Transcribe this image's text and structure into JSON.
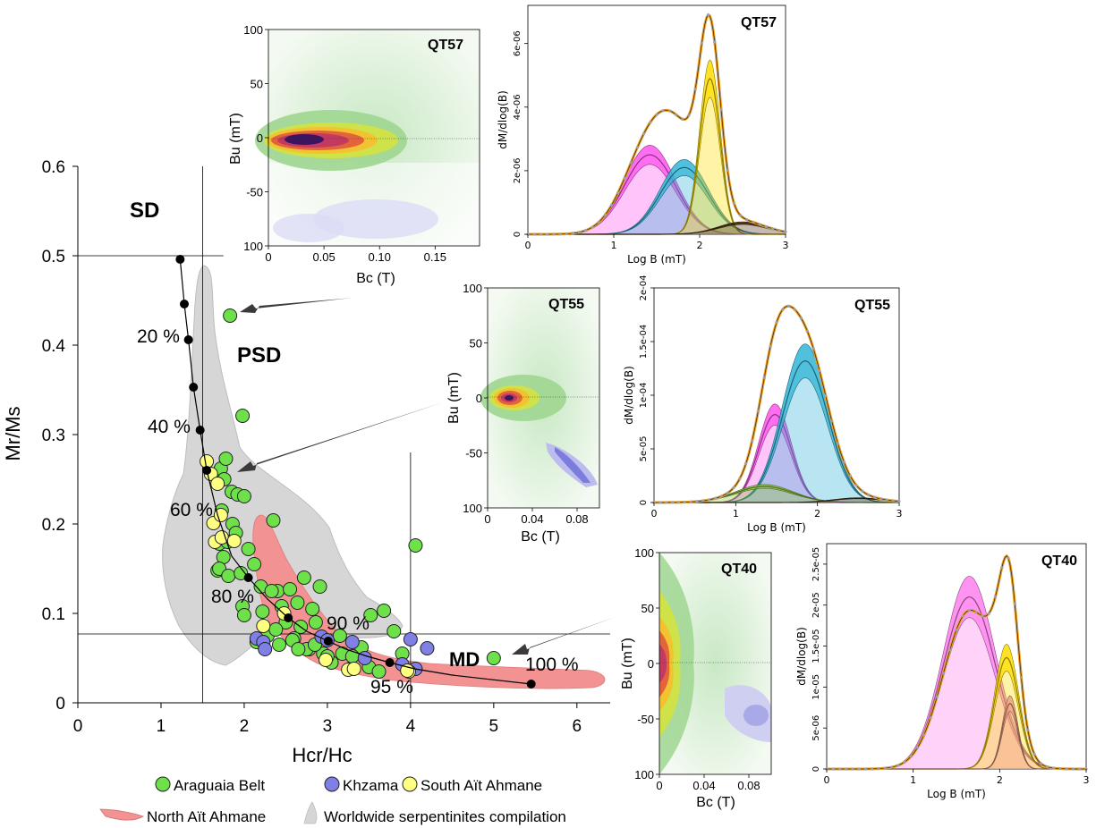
{
  "chart_data": [
    {
      "id": "day-plot",
      "type": "scatter",
      "xlabel": "Hcr/Hc",
      "ylabel": "Mr/Ms",
      "xlim": [
        0,
        6.4
      ],
      "ylim": [
        0,
        0.6
      ],
      "xticks": [
        "0",
        "1",
        "2",
        "3",
        "4",
        "5",
        "6"
      ],
      "yticks": [
        "0",
        "0.1",
        "0.2",
        "0.3",
        "0.4",
        "0.5",
        "0.6"
      ],
      "reference_lines": {
        "x": [
          1.5,
          4.0
        ],
        "y": [
          0.5,
          0.077
        ]
      },
      "region_labels": [
        "SD",
        "PSD",
        "MD"
      ],
      "mixing_curve": {
        "x": [
          1.23,
          1.28,
          1.33,
          1.39,
          1.47,
          1.55,
          1.68,
          1.85,
          2.05,
          2.28,
          2.53,
          2.75,
          3.01,
          3.22,
          3.48,
          3.75,
          4.05,
          4.5,
          5.45
        ],
        "y": [
          0.496,
          0.446,
          0.406,
          0.353,
          0.305,
          0.26,
          0.21,
          0.164,
          0.14,
          0.116,
          0.095,
          0.08,
          0.069,
          0.06,
          0.052,
          0.045,
          0.038,
          0.031,
          0.021
        ],
        "labels": [
          "20 %",
          "40 %",
          "60 %",
          "80 %",
          "90 %",
          "95 %",
          "100 %"
        ]
      },
      "series": [
        {
          "name": "Araguaia Belt",
          "color": "#6de04a",
          "x": [
            1.83,
            1.98,
            1.72,
            1.78,
            1.85,
            1.76,
            1.92,
            2.0,
            1.73,
            1.86,
            1.7,
            1.8,
            1.68,
            1.75,
            1.9,
            2.05,
            1.7,
            1.81,
            1.96,
            2.12,
            2.35,
            1.98,
            2.2,
            2.4,
            2.55,
            2.72,
            2.91,
            2.33,
            2.45,
            2.64,
            2.82,
            2.0,
            2.22,
            2.5,
            2.68,
            2.86,
            2.15,
            2.28,
            2.42,
            2.6,
            2.78,
            2.95,
            3.18,
            3.41,
            3.52,
            3.68,
            3.8,
            3.28,
            2.38,
            2.58,
            2.75,
            3.05,
            3.3,
            3.5,
            3.62,
            3.9,
            4.06,
            5.0,
            2.65,
            2.85,
            3.0,
            3.15
          ],
          "y": [
            0.433,
            0.321,
            0.262,
            0.273,
            0.236,
            0.25,
            0.233,
            0.231,
            0.215,
            0.2,
            0.178,
            0.18,
            0.148,
            0.163,
            0.19,
            0.172,
            0.15,
            0.142,
            0.145,
            0.155,
            0.204,
            0.108,
            0.13,
            0.125,
            0.127,
            0.14,
            0.13,
            0.125,
            0.108,
            0.112,
            0.105,
            0.098,
            0.102,
            0.09,
            0.085,
            0.09,
            0.068,
            0.075,
            0.065,
            0.072,
            0.06,
            0.055,
            0.055,
            0.062,
            0.098,
            0.103,
            0.08,
            0.038,
            0.082,
            0.07,
            0.06,
            0.045,
            0.052,
            0.04,
            0.035,
            0.055,
            0.176,
            0.05,
            0.06,
            0.065,
            0.052,
            0.075
          ]
        },
        {
          "name": "Khzama",
          "color": "#7f7fe6",
          "x": [
            2.15,
            2.23,
            2.25,
            2.93,
            3.0,
            3.3,
            3.45,
            3.9,
            4.0,
            4.06,
            4.2
          ],
          "y": [
            0.072,
            0.068,
            0.06,
            0.074,
            0.07,
            0.068,
            0.05,
            0.043,
            0.071,
            0.038,
            0.061
          ]
        },
        {
          "name": "South Aït Ahmane",
          "color": "#ffff80",
          "x": [
            1.55,
            1.6,
            1.68,
            1.63,
            1.72,
            1.65,
            1.73,
            1.88,
            2.23,
            2.48,
            2.98,
            3.25,
            3.32,
            3.98,
            3.96
          ],
          "y": [
            0.27,
            0.256,
            0.245,
            0.201,
            0.21,
            0.18,
            0.185,
            0.181,
            0.086,
            0.1,
            0.048,
            0.037,
            0.038,
            0.035,
            0.036
          ]
        }
      ],
      "shaded_regions": [
        {
          "name": "North Aït Ahmane",
          "color": "#f08585"
        },
        {
          "name": "Worldwide serpentinites compilation",
          "color": "#cfcfcf"
        }
      ]
    },
    {
      "id": "forc-qt57",
      "type": "heatmap",
      "title": "QT57",
      "xlabel": "Bc (T)",
      "ylabel": "Bu (mT)",
      "xticks": [
        "0",
        "0.05",
        "0.10",
        "0.15"
      ],
      "yticks": [
        "100",
        "50",
        "0",
        "-50",
        "100"
      ],
      "xlim": [
        0,
        0.19
      ],
      "ylim": [
        -100,
        100
      ]
    },
    {
      "id": "forc-qt55",
      "type": "heatmap",
      "title": "QT55",
      "xlabel": "Bc (T)",
      "ylabel": "Bu (mT)",
      "xticks": [
        "0",
        "0.04",
        "0.08"
      ],
      "yticks": [
        "100",
        "50",
        "0",
        "-50",
        "100"
      ],
      "xlim": [
        0,
        0.1
      ],
      "ylim": [
        -100,
        100
      ]
    },
    {
      "id": "forc-qt40",
      "type": "heatmap",
      "title": "QT40",
      "xlabel": "Bc (T)",
      "ylabel": "Bu (mT)",
      "xticks": [
        "0",
        "0.04",
        "0.08"
      ],
      "yticks": [
        "100",
        "50",
        "0",
        "-50",
        "100"
      ],
      "xlim": [
        0,
        0.1
      ],
      "ylim": [
        -100,
        100
      ]
    },
    {
      "id": "unmix-qt57",
      "type": "area",
      "title": "QT57",
      "xlabel": "Log B (mT)",
      "ylabel": "dM/dlog(B)",
      "xticks": [
        "0",
        "1",
        "2",
        "3"
      ],
      "yticks": [
        "0",
        "2e-06",
        "4e-06",
        "6e-06"
      ],
      "xlim": [
        0,
        3
      ],
      "ylim": [
        0,
        7.2e-06
      ],
      "components": [
        {
          "color": "#ff55ee",
          "center": 1.42,
          "width": 0.3,
          "amp": 2.5e-06
        },
        {
          "color": "#33b5d6",
          "center": 1.82,
          "width": 0.28,
          "amp": 2.1e-06
        },
        {
          "color": "#ffdd00",
          "center": 2.12,
          "width": 0.12,
          "amp": 4.9e-06
        },
        {
          "color": "#5a3a1a",
          "center": 2.5,
          "width": 0.28,
          "amp": 3.5e-07
        }
      ],
      "envelope_peak": 6.9e-06
    },
    {
      "id": "unmix-qt55",
      "type": "area",
      "title": "QT55",
      "xlabel": "Log B (mT)",
      "ylabel": "dM/dlog(B)",
      "xticks": [
        "0",
        "1",
        "2",
        "3"
      ],
      "yticks": [
        "0",
        "5e-05",
        "1e-04",
        "1.5e-04",
        "2e-04"
      ],
      "xlim": [
        0,
        3
      ],
      "ylim": [
        0,
        0.0002
      ],
      "components": [
        {
          "color": "#ff55ee",
          "center": 1.48,
          "width": 0.2,
          "amp": 8.2e-05
        },
        {
          "color": "#33b5d6",
          "center": 1.85,
          "width": 0.28,
          "amp": 0.000132
        },
        {
          "color": "#8cc63f",
          "center": 1.35,
          "width": 0.35,
          "amp": 1.5e-05
        },
        {
          "color": "#5a3a1a",
          "center": 2.5,
          "width": 0.3,
          "amp": 4e-06
        }
      ],
      "envelope_peak": 0.000183
    },
    {
      "id": "unmix-qt40",
      "type": "area",
      "title": "QT40",
      "xlabel": "Log B (mT)",
      "ylabel": "dM/dlog(B)",
      "xticks": [
        "0",
        "1",
        "2",
        "3"
      ],
      "yticks": [
        "0",
        "5e-06",
        "1e-05",
        "1.5e-05",
        "2e-05",
        "2.5e-05"
      ],
      "xlim": [
        0,
        3
      ],
      "ylim": [
        0,
        2.75e-05
      ],
      "components": [
        {
          "color": "#ff80ee",
          "center": 1.65,
          "width": 0.3,
          "amp": 2.1e-05
        },
        {
          "color": "#ffdd00",
          "center": 2.08,
          "width": 0.14,
          "amp": 1.36e-05
        },
        {
          "color": "#f0a080",
          "center": 2.12,
          "width": 0.09,
          "amp": 8e-06
        }
      ],
      "envelope_peak": 2.6e-05
    }
  ],
  "legend": {
    "araguaia": "Araguaia Belt",
    "khzama": "Khzama",
    "south": "South Aït Ahmane",
    "north": "North Aït Ahmane",
    "worldwide": "Worldwide serpentinites compilation"
  }
}
